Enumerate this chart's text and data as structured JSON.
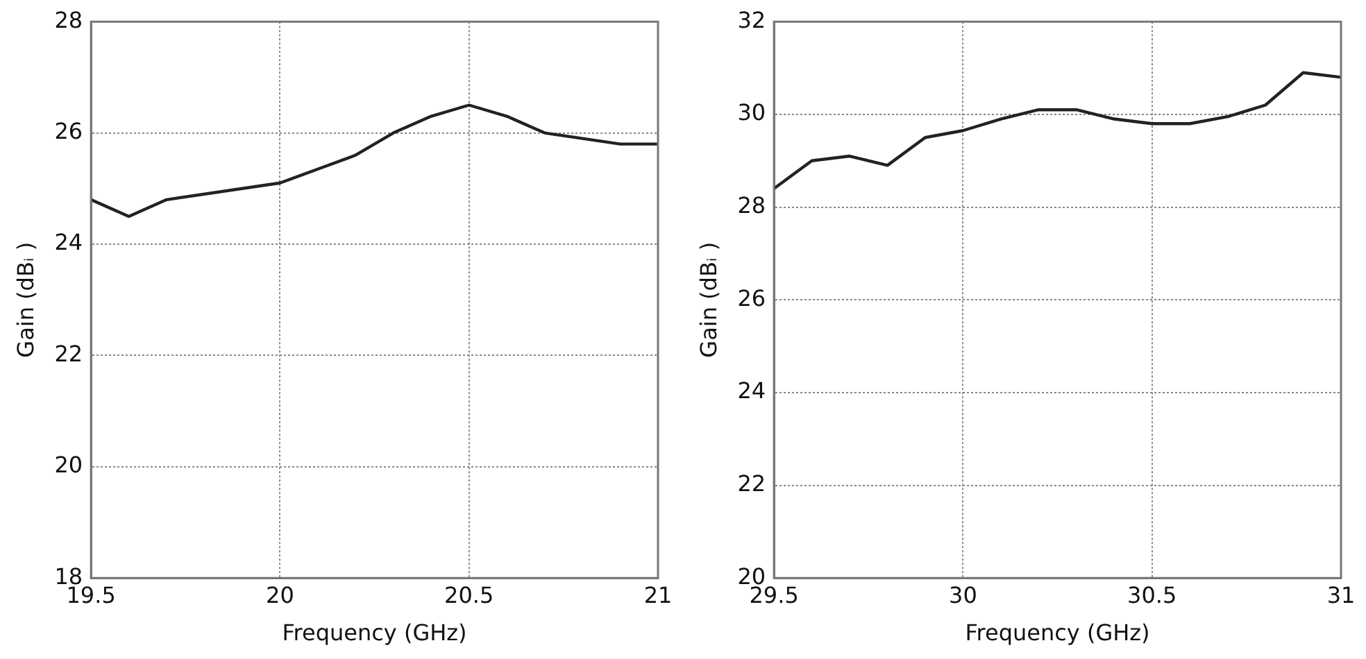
{
  "chart_data": [
    {
      "type": "line",
      "xlabel": "Frequency (GHz)",
      "ylabel": "Gain (dBᵢ )",
      "grid": true,
      "marker": "none",
      "line_style": "solid",
      "legend": false,
      "x": [
        19.5,
        19.6,
        19.7,
        20.0,
        20.1,
        20.2,
        20.3,
        20.4,
        20.5,
        20.6,
        20.7,
        20.9,
        21.0
      ],
      "series": [
        {
          "color": "#222222",
          "values": [
            24.8,
            24.5,
            24.8,
            25.1,
            25.35,
            25.6,
            26.0,
            26.3,
            26.5,
            26.3,
            26.0,
            25.8,
            25.8
          ]
        }
      ],
      "xlim": [
        19.5,
        21
      ],
      "xticks": [
        19.5,
        20,
        20.5,
        21
      ],
      "ylim": [
        18,
        28
      ],
      "yticks": [
        18,
        20,
        22,
        24,
        26,
        28
      ]
    },
    {
      "type": "line",
      "xlabel": "Frequency (GHz)",
      "ylabel": "Gain (dBᵢ )",
      "grid": true,
      "marker": "none",
      "line_style": "solid",
      "legend": false,
      "x": [
        29.5,
        29.6,
        29.7,
        29.8,
        29.9,
        30.0,
        30.1,
        30.2,
        30.3,
        30.4,
        30.5,
        30.6,
        30.7,
        30.8,
        30.9,
        31.0
      ],
      "series": [
        {
          "color": "#222222",
          "values": [
            28.4,
            29.0,
            29.1,
            28.9,
            29.5,
            29.65,
            29.9,
            30.1,
            30.1,
            29.9,
            29.8,
            29.8,
            29.95,
            30.2,
            30.9,
            30.8
          ]
        }
      ],
      "xlim": [
        29.5,
        31
      ],
      "xticks": [
        29.5,
        30,
        30.5,
        31
      ],
      "ylim": [
        20,
        32
      ],
      "yticks": [
        20,
        22,
        24,
        26,
        28,
        30,
        32
      ]
    }
  ]
}
